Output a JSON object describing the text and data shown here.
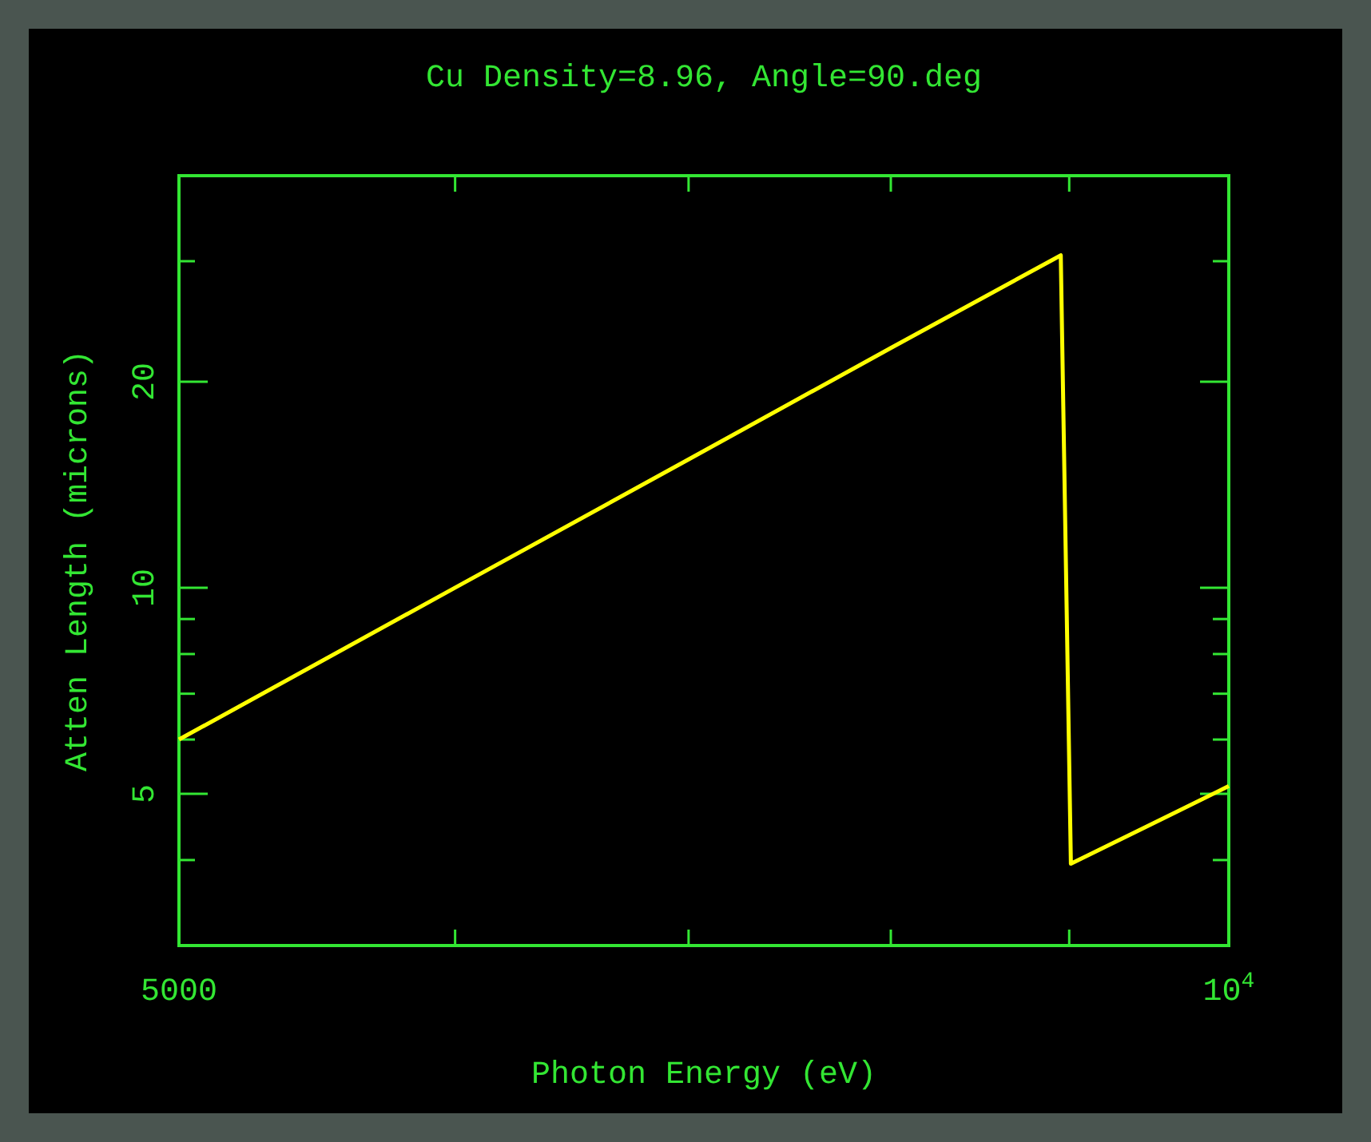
{
  "chart_data": {
    "type": "line",
    "title": "Cu Density=8.96, Angle=90.deg",
    "xlabel": "Photon Energy (eV)",
    "ylabel": "Atten Length (microns)",
    "log": "xy",
    "grid": false,
    "marker": "none",
    "line_style": "solid",
    "xlim": [
      5000,
      10000
    ],
    "ylim": [
      3,
      40
    ],
    "xticks": [
      5000,
      {
        "value": 6000,
        "label": null
      },
      {
        "value": 7000,
        "label": null
      },
      {
        "value": 8000,
        "label": null
      },
      {
        "value": 9000,
        "label": null
      },
      {
        "value": 10000,
        "label": "10$^{4}$"
      }
    ],
    "yticks": [
      {
        "value": 3,
        "label": null
      },
      {
        "value": 4,
        "label": null
      },
      5,
      {
        "value": 6,
        "label": null
      },
      {
        "value": 7,
        "label": null
      },
      {
        "value": 8,
        "label": null
      },
      {
        "value": 9,
        "label": null
      },
      10,
      20,
      {
        "value": 30,
        "label": null
      },
      {
        "value": 40,
        "label": null
      }
    ],
    "series": [
      {
        "color": "#ffff00",
        "x": [
          5000,
          6000,
          7000,
          8000,
          8950,
          9010,
          9500,
          10000
        ],
        "values": [
          6.0,
          10.0,
          15.4,
          22.4,
          30.6,
          3.95,
          4.51,
          5.13
        ]
      }
    ]
  }
}
